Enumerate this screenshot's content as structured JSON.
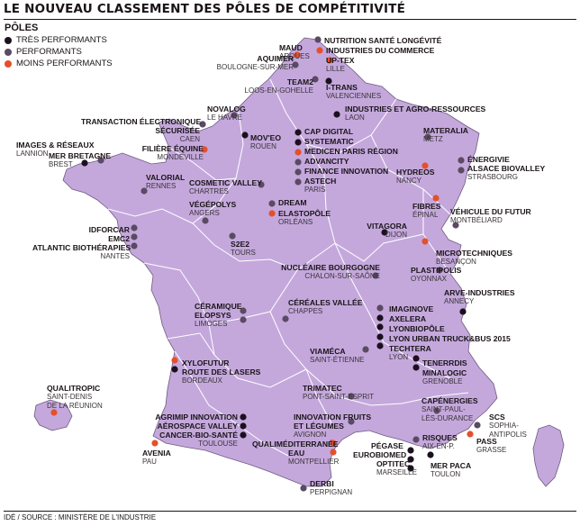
{
  "title": "LE NOUVEAU CLASSEMENT DES PÔLES DE COMPÉTITIVITÉ",
  "legend": {
    "title": "PÔLES",
    "items": [
      {
        "label": "TRÈS PERFORMANTS",
        "color": "#1c1020"
      },
      {
        "label": "PERFORMANTS",
        "color": "#5a4a63"
      },
      {
        "label": "MOINS PERFORMANTS",
        "color": "#e4502c"
      }
    ]
  },
  "colors": {
    "land": "#c4a8dc",
    "land_border": "#ffffff",
    "outline": "#6e5a80"
  },
  "poles": [
    {
      "key": "maud",
      "names": [
        "MAUD"
      ],
      "city": "ARQUES",
      "perf": "low"
    },
    {
      "key": "aquimer",
      "names": [
        "AQUIMER"
      ],
      "city": "BOULOGNE-SUR-MER",
      "perf": "mid"
    },
    {
      "key": "nutrition",
      "names": [
        "NUTRITION SANTÉ LONGÉVITÉ"
      ],
      "city": "",
      "perf": "mid"
    },
    {
      "key": "ic",
      "names": [
        "INDUSTRIES DU COMMERCE"
      ],
      "city": "",
      "perf": "low"
    },
    {
      "key": "uptex",
      "names": [
        "UP-TEX"
      ],
      "city": "LILLE",
      "perf": "low"
    },
    {
      "key": "team2",
      "names": [
        "TEAM2"
      ],
      "city": "LOOS-EN-GOHELLE",
      "perf": "mid"
    },
    {
      "key": "itrans",
      "names": [
        "I-TRANS"
      ],
      "city": "VALENCIENNES",
      "perf": "high"
    },
    {
      "key": "iar",
      "names": [
        "INDUSTRIES ET AGRO-RESSOURCES"
      ],
      "city": "LAON",
      "perf": "high"
    },
    {
      "key": "novalog",
      "names": [
        "NOVALOG"
      ],
      "city": "LE HAVRE",
      "perf": "mid"
    },
    {
      "key": "transaction",
      "names": [
        "TRANSACTION ÉLECTRONIQUE",
        "SÉCURISÉE"
      ],
      "city": "CAEN",
      "perf": "mid"
    },
    {
      "key": "filiere",
      "names": [
        "FILIÈRE ÉQUINE"
      ],
      "city": "MONDEVILLE",
      "perf": "low"
    },
    {
      "key": "moveo",
      "names": [
        "MOV'EO"
      ],
      "city": "ROUEN",
      "perf": "high"
    },
    {
      "key": "capdigital",
      "names": [
        "CAP DIGITAL"
      ],
      "city": "",
      "perf": "high"
    },
    {
      "key": "systematic",
      "names": [
        "SYSTEMATIC"
      ],
      "city": "",
      "perf": "high"
    },
    {
      "key": "medicen",
      "names": [
        "MEDICEN PARIS RÉGION"
      ],
      "city": "",
      "perf": "low"
    },
    {
      "key": "advancity",
      "names": [
        "ADVANCITY"
      ],
      "city": "",
      "perf": "mid"
    },
    {
      "key": "finance",
      "names": [
        "FINANCE INNOVATION"
      ],
      "city": "",
      "perf": "mid"
    },
    {
      "key": "astech",
      "names": [
        "ASTECH"
      ],
      "city": "PARIS",
      "perf": "mid"
    },
    {
      "key": "materalia",
      "names": [
        "MATERALIA"
      ],
      "city": "METZ",
      "perf": "mid"
    },
    {
      "key": "energivie",
      "names": [
        "ÉNERGIVIE"
      ],
      "city": "",
      "perf": "mid"
    },
    {
      "key": "alsace",
      "names": [
        "ALSACE BIOVALLEY"
      ],
      "city": "STRASBOURG",
      "perf": "mid"
    },
    {
      "key": "hydreos",
      "names": [
        "HYDREOS"
      ],
      "city": "NANCY",
      "perf": "low"
    },
    {
      "key": "fibres",
      "names": [
        "FIBRES"
      ],
      "city": "ÉPINAL",
      "perf": "low"
    },
    {
      "key": "vehicule",
      "names": [
        "VÉHICULE DU FUTUR"
      ],
      "city": "MONTBÉLIARD",
      "perf": "mid"
    },
    {
      "key": "images",
      "names": [
        "IMAGES & RÉSEAUX"
      ],
      "city": "LANNION",
      "perf": "high"
    },
    {
      "key": "merbretagne",
      "names": [
        "MER BRETAGNE"
      ],
      "city": "BREST",
      "perf": "mid"
    },
    {
      "key": "valorial",
      "names": [
        "VALORIAL"
      ],
      "city": "RENNES",
      "perf": "mid"
    },
    {
      "key": "cosmetic",
      "names": [
        "COSMETIC VALLEY"
      ],
      "city": "CHARTRES",
      "perf": "mid"
    },
    {
      "key": "dream",
      "names": [
        "DREAM"
      ],
      "city": "",
      "perf": "mid"
    },
    {
      "key": "elastopole",
      "names": [
        "ELASTOPÔLE"
      ],
      "city": "ORLÉANS",
      "perf": "low"
    },
    {
      "key": "vegepolys",
      "names": [
        "VÉGÉPOLYS"
      ],
      "city": "ANGERS",
      "perf": "mid"
    },
    {
      "key": "idforcar",
      "names": [
        "IDFORCAR"
      ],
      "city": "",
      "perf": "mid"
    },
    {
      "key": "emc2",
      "names": [
        "EMC2"
      ],
      "city": "",
      "perf": "mid"
    },
    {
      "key": "atlantic",
      "names": [
        "ATLANTIC BIOTHÉRAPIES"
      ],
      "city": "NANTES",
      "perf": "mid"
    },
    {
      "key": "s2e2",
      "names": [
        "S2E2"
      ],
      "city": "TOURS",
      "perf": "mid"
    },
    {
      "key": "vitagora",
      "names": [
        "VITAGORA"
      ],
      "city": "DIJON",
      "perf": "high"
    },
    {
      "key": "microtech",
      "names": [
        "MICROTECHNIQUES"
      ],
      "city": "BESANÇON",
      "perf": "low"
    },
    {
      "key": "nucleaire",
      "names": [
        "NUCLÉAIRE BOURGOGNE"
      ],
      "city": "CHALON-SUR-SAÔNE",
      "perf": "mid"
    },
    {
      "key": "plastipolis",
      "names": [
        "PLASTIPOLIS"
      ],
      "city": "OYONNAX",
      "perf": "mid"
    },
    {
      "key": "arve",
      "names": [
        "ARVE-INDUSTRIES"
      ],
      "city": "ANNECY",
      "perf": "high"
    },
    {
      "key": "cereales",
      "names": [
        "CÉRÉALES VALLÉE"
      ],
      "city": "CHAPPES",
      "perf": "mid"
    },
    {
      "key": "ceramique",
      "names": [
        "CÉRAMIQUE"
      ],
      "city": "",
      "perf": "mid"
    },
    {
      "key": "elopsys",
      "names": [
        "ELOPSYS"
      ],
      "city": "LIMOGES",
      "perf": "mid"
    },
    {
      "key": "imaginove",
      "names": [
        "IMAGINOVE"
      ],
      "city": "",
      "perf": "mid"
    },
    {
      "key": "axelera",
      "names": [
        "AXELERA"
      ],
      "city": "",
      "perf": "high"
    },
    {
      "key": "lyonbiopole",
      "names": [
        "LYONBIOPÔLE"
      ],
      "city": "",
      "perf": "high"
    },
    {
      "key": "lyonurban",
      "names": [
        "LYON URBAN TRUCK&BUS 2015"
      ],
      "city": "",
      "perf": "high"
    },
    {
      "key": "techtera",
      "names": [
        "TECHTERA"
      ],
      "city": "LYON",
      "perf": "high"
    },
    {
      "key": "viameca",
      "names": [
        "VIAMÉCA"
      ],
      "city": "SAINT-ÉTIENNE",
      "perf": "mid"
    },
    {
      "key": "tenerrdis",
      "names": [
        "TENERRDIS"
      ],
      "city": "",
      "perf": "high"
    },
    {
      "key": "minalogic",
      "names": [
        "MINALOGIC"
      ],
      "city": "GRENOBLE",
      "perf": "high"
    },
    {
      "key": "xylofutur",
      "names": [
        "XYLOFUTUR"
      ],
      "city": "",
      "perf": "low"
    },
    {
      "key": "routelasers",
      "names": [
        "ROUTE DES LASERS"
      ],
      "city": "BORDEAUX",
      "perf": "high"
    },
    {
      "key": "qualitropic",
      "names": [
        "QUALITROPIC"
      ],
      "city": "SAINT-DENIS",
      "city2": "DE LA RÉUNION",
      "perf": "low"
    },
    {
      "key": "trimatec",
      "names": [
        "TRIMATEC"
      ],
      "city": "PONT-SAINT-ESPRIT",
      "perf": "mid"
    },
    {
      "key": "capenergies",
      "names": [
        "CAPÉNERGIES"
      ],
      "city": "SAINT-PAUL-",
      "city2": "LÈS-DURANCE",
      "perf": "mid"
    },
    {
      "key": "agrimip",
      "names": [
        "AGRIMIP INNOVATION"
      ],
      "city": "",
      "perf": "high"
    },
    {
      "key": "aerospace",
      "names": [
        "AÉROSPACE VALLEY"
      ],
      "city": "",
      "perf": "high"
    },
    {
      "key": "cancer",
      "names": [
        "CANCER-BIO-SANTÉ"
      ],
      "city": "TOULOUSE",
      "perf": "high"
    },
    {
      "key": "innovfruits",
      "names": [
        "INNOVATION FRUITS",
        "ET LÉGUMES"
      ],
      "city": "AVIGNON",
      "perf": "mid"
    },
    {
      "key": "scs",
      "names": [
        "SCS"
      ],
      "city": "SOPHIA-",
      "city2": "ANTIPOLIS",
      "perf": "mid"
    },
    {
      "key": "qualimed",
      "names": [
        "QUALIMÉDITERRANÉE"
      ],
      "city": "",
      "perf": "low"
    },
    {
      "key": "eau",
      "names": [
        "EAU"
      ],
      "city": "MONTPELLIER",
      "perf": "low"
    },
    {
      "key": "risques",
      "names": [
        "RISQUES"
      ],
      "city": "AIX-EN-P.",
      "perf": "mid"
    },
    {
      "key": "pass",
      "names": [
        "PASS"
      ],
      "city": "GRASSE",
      "perf": "low"
    },
    {
      "key": "avenia",
      "names": [
        "AVENIA"
      ],
      "city": "PAU",
      "perf": "low"
    },
    {
      "key": "pegase",
      "names": [
        "PÉGASE"
      ],
      "city": "",
      "perf": "high"
    },
    {
      "key": "eurobiomed",
      "names": [
        "EUROBIOMED"
      ],
      "city": "",
      "perf": "high"
    },
    {
      "key": "optitec",
      "names": [
        "OPTITEC"
      ],
      "city": "MARSEILLE",
      "perf": "high"
    },
    {
      "key": "merpaca",
      "names": [
        "MER PACA"
      ],
      "city": "TOULON",
      "perf": "high"
    },
    {
      "key": "derbi",
      "names": [
        "DERBI"
      ],
      "city": "PERPIGNAN",
      "perf": "mid"
    }
  ],
  "footer": "IDÉ / SOURCE : MINISTÈRE DE L'INDUSTRIE"
}
